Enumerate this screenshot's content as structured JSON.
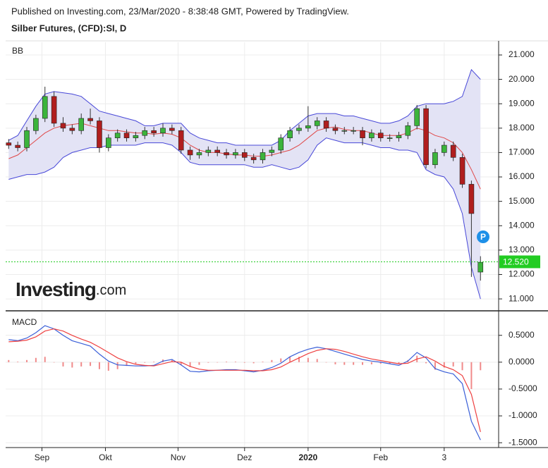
{
  "header": {
    "published": "Published on Investing.com, 23/Mar/2020 - 8:38:48 GMT, Powered by TradingView.",
    "instrument": "Silber Futures, (CFD):SI, D"
  },
  "logo": {
    "brand": "Investing",
    "suffix": ".com"
  },
  "marker": "P",
  "chart_data": [
    {
      "type": "candlestick",
      "title": "BB",
      "up_color": "#3cb43c",
      "down_color": "#b01e1e",
      "x": [
        1,
        4,
        7,
        10,
        13,
        16,
        19,
        22,
        25,
        28,
        31,
        34,
        37,
        40,
        43,
        46,
        49,
        52,
        55,
        58,
        61,
        64,
        67,
        70,
        73,
        76,
        79,
        82,
        85,
        88,
        91,
        94,
        97,
        100,
        103,
        106,
        109,
        112,
        115,
        118,
        121,
        124,
        127,
        130,
        133,
        136,
        139,
        142,
        145,
        148,
        151,
        154,
        157
      ],
      "open": [
        17.4,
        17.3,
        17.2,
        17.9,
        18.4,
        19.3,
        18.2,
        18.0,
        17.9,
        18.4,
        18.3,
        17.2,
        17.6,
        17.8,
        17.6,
        17.7,
        17.9,
        17.8,
        18.0,
        17.9,
        17.1,
        16.9,
        17.0,
        17.1,
        17.0,
        16.9,
        17.0,
        16.8,
        16.7,
        17.0,
        17.1,
        17.6,
        17.9,
        18.0,
        18.1,
        18.3,
        18.0,
        17.9,
        17.9,
        17.9,
        17.6,
        17.8,
        17.6,
        17.6,
        17.7,
        18.1,
        18.8,
        16.5,
        17.0,
        17.3,
        16.8,
        15.7,
        12.1
      ],
      "high": [
        17.55,
        17.45,
        18.05,
        18.55,
        19.7,
        19.5,
        18.45,
        18.15,
        18.6,
        18.8,
        18.45,
        17.75,
        17.95,
        17.95,
        17.85,
        18.05,
        18.05,
        18.2,
        18.15,
        18.05,
        17.25,
        17.15,
        17.25,
        17.25,
        17.15,
        17.15,
        17.15,
        16.95,
        17.15,
        17.25,
        17.75,
        18.05,
        18.15,
        18.9,
        18.45,
        18.45,
        18.15,
        18.05,
        18.05,
        18.05,
        17.95,
        17.95,
        17.75,
        17.85,
        18.25,
        18.95,
        18.95,
        17.15,
        17.45,
        17.45,
        16.95,
        15.85,
        12.75
      ],
      "low": [
        17.15,
        17.05,
        17.05,
        17.75,
        18.25,
        18.05,
        17.85,
        17.75,
        17.75,
        18.15,
        17.0,
        17.05,
        17.45,
        17.45,
        17.45,
        17.55,
        17.65,
        17.65,
        17.75,
        16.95,
        16.7,
        16.75,
        16.85,
        16.85,
        16.75,
        16.75,
        16.65,
        16.55,
        16.55,
        16.85,
        16.95,
        17.45,
        17.75,
        17.85,
        17.95,
        17.85,
        17.75,
        17.75,
        17.75,
        17.3,
        17.45,
        17.45,
        17.45,
        17.45,
        17.55,
        17.95,
        16.35,
        16.35,
        16.85,
        16.65,
        15.55,
        11.9,
        11.75
      ],
      "close": [
        17.3,
        17.2,
        17.9,
        18.4,
        19.3,
        18.2,
        18.0,
        17.9,
        18.4,
        18.3,
        17.2,
        17.6,
        17.8,
        17.6,
        17.7,
        17.9,
        17.8,
        18.0,
        17.9,
        17.1,
        16.9,
        17.0,
        17.1,
        17.0,
        16.9,
        17.0,
        16.8,
        16.7,
        17.0,
        17.1,
        17.6,
        17.9,
        18.0,
        18.1,
        18.3,
        18.0,
        17.9,
        17.9,
        17.9,
        17.6,
        17.8,
        17.6,
        17.6,
        17.7,
        18.1,
        18.8,
        16.5,
        17.0,
        17.3,
        16.8,
        15.7,
        14.5,
        12.5
      ],
      "band_color": "#e3e3f5",
      "series": [
        {
          "color": "#4848d8",
          "values": [
            17.5,
            17.7,
            18.3,
            18.9,
            19.4,
            19.5,
            19.45,
            19.4,
            19.3,
            19.0,
            18.7,
            18.6,
            18.5,
            18.4,
            18.3,
            18.1,
            18.1,
            18.2,
            18.2,
            18.2,
            17.8,
            17.6,
            17.5,
            17.4,
            17.4,
            17.3,
            17.3,
            17.3,
            17.3,
            17.3,
            17.5,
            17.9,
            18.2,
            18.5,
            18.6,
            18.6,
            18.6,
            18.5,
            18.5,
            18.4,
            18.3,
            18.2,
            18.2,
            18.3,
            18.5,
            18.9,
            19.0,
            19.0,
            19.0,
            19.1,
            19.3,
            20.4,
            20.0
          ]
        },
        {
          "color": "#e04848",
          "values": [
            16.75,
            16.9,
            17.2,
            17.5,
            17.8,
            18.0,
            18.1,
            18.15,
            18.2,
            18.1,
            18.0,
            17.9,
            17.9,
            17.85,
            17.8,
            17.8,
            17.75,
            17.8,
            17.75,
            17.6,
            17.3,
            17.1,
            17.0,
            17.0,
            16.95,
            16.9,
            16.9,
            16.85,
            16.85,
            16.9,
            17.0,
            17.1,
            17.3,
            17.6,
            17.9,
            18.0,
            18.05,
            17.95,
            17.9,
            17.9,
            17.8,
            17.7,
            17.7,
            17.7,
            17.8,
            18.0,
            17.9,
            17.7,
            17.6,
            17.4,
            17.0,
            16.3,
            15.5
          ]
        },
        {
          "color": "#4848d8",
          "values": [
            15.9,
            16.0,
            16.1,
            16.1,
            16.2,
            16.4,
            16.8,
            17.0,
            17.1,
            17.2,
            17.2,
            17.3,
            17.3,
            17.3,
            17.3,
            17.4,
            17.4,
            17.4,
            17.3,
            17.0,
            16.6,
            16.5,
            16.5,
            16.5,
            16.5,
            16.5,
            16.5,
            16.4,
            16.4,
            16.5,
            16.4,
            16.3,
            16.4,
            16.7,
            17.3,
            17.6,
            17.5,
            17.4,
            17.4,
            17.4,
            17.3,
            17.2,
            17.2,
            17.1,
            17.1,
            17.0,
            16.3,
            16.1,
            16.0,
            15.5,
            14.5,
            12.3,
            11.0
          ]
        }
      ],
      "last_price": {
        "value": 12.52,
        "label": "12.520",
        "color": "#22cc22"
      },
      "xlim": [
        0,
        163
      ],
      "xticks": [
        {
          "value": 12,
          "label": "Sep"
        },
        {
          "value": 33,
          "label": "Okt"
        },
        {
          "value": 57,
          "label": "Nov"
        },
        {
          "value": 79,
          "label": "Dez"
        },
        {
          "value": 100,
          "label": "2020"
        },
        {
          "value": 124,
          "label": "Feb"
        },
        {
          "value": 145,
          "label": "3"
        }
      ],
      "ylim": [
        10.54,
        21.52
      ],
      "yticks": [
        {
          "value": 11,
          "label": "11.000"
        },
        {
          "value": 12,
          "label": "12.000"
        },
        {
          "value": 13,
          "label": "13.000"
        },
        {
          "value": 14,
          "label": "14.000"
        },
        {
          "value": 15,
          "label": "15.000"
        },
        {
          "value": 16,
          "label": "16.000"
        },
        {
          "value": 17,
          "label": "17.000"
        },
        {
          "value": 18,
          "label": "18.000"
        },
        {
          "value": 19,
          "label": "19.000"
        },
        {
          "value": 20,
          "label": "20.000"
        },
        {
          "value": 21,
          "label": "21.000"
        }
      ],
      "grid": true
    },
    {
      "type": "macd",
      "title": "MACD",
      "x": [
        1,
        4,
        7,
        10,
        13,
        16,
        19,
        22,
        25,
        28,
        31,
        34,
        37,
        40,
        43,
        46,
        49,
        52,
        55,
        58,
        61,
        64,
        67,
        70,
        73,
        76,
        79,
        82,
        85,
        88,
        91,
        94,
        97,
        100,
        103,
        106,
        109,
        112,
        115,
        118,
        121,
        124,
        127,
        130,
        133,
        136,
        139,
        142,
        145,
        148,
        151,
        154,
        157
      ],
      "series": [
        {
          "color": "#3a5fd8",
          "values": [
            0.42,
            0.4,
            0.45,
            0.55,
            0.68,
            0.62,
            0.5,
            0.4,
            0.35,
            0.3,
            0.15,
            0.02,
            -0.05,
            -0.06,
            -0.07,
            -0.07,
            -0.06,
            0.02,
            0.05,
            -0.05,
            -0.17,
            -0.18,
            -0.16,
            -0.15,
            -0.14,
            -0.14,
            -0.16,
            -0.18,
            -0.15,
            -0.1,
            -0.02,
            0.1,
            0.18,
            0.24,
            0.28,
            0.25,
            0.2,
            0.15,
            0.1,
            0.05,
            0.02,
            0.0,
            -0.03,
            -0.06,
            0.02,
            0.18,
            0.08,
            -0.12,
            -0.18,
            -0.22,
            -0.4,
            -1.1,
            -1.45
          ]
        },
        {
          "color": "#ee4040",
          "values": [
            0.38,
            0.39,
            0.41,
            0.47,
            0.58,
            0.62,
            0.58,
            0.5,
            0.43,
            0.37,
            0.28,
            0.18,
            0.08,
            0.01,
            -0.04,
            -0.06,
            -0.07,
            -0.03,
            0.01,
            0.0,
            -0.08,
            -0.13,
            -0.15,
            -0.15,
            -0.15,
            -0.15,
            -0.15,
            -0.16,
            -0.16,
            -0.14,
            -0.09,
            0.0,
            0.08,
            0.16,
            0.22,
            0.25,
            0.24,
            0.2,
            0.15,
            0.1,
            0.06,
            0.03,
            0.0,
            -0.03,
            -0.02,
            0.06,
            0.1,
            0.02,
            -0.08,
            -0.14,
            -0.25,
            -0.6,
            -1.3
          ]
        }
      ],
      "histogram": {
        "color": "#f08a8a",
        "values": [
          0.04,
          0.01,
          0.04,
          0.08,
          0.1,
          0.0,
          -0.08,
          -0.1,
          -0.08,
          -0.07,
          -0.13,
          -0.16,
          -0.13,
          -0.07,
          -0.03,
          -0.01,
          0.01,
          0.05,
          0.04,
          -0.05,
          -0.09,
          -0.05,
          -0.01,
          0.0,
          0.01,
          0.01,
          -0.01,
          -0.02,
          0.01,
          0.04,
          0.07,
          0.1,
          0.1,
          0.08,
          0.06,
          0.0,
          -0.04,
          -0.05,
          -0.05,
          -0.05,
          -0.04,
          -0.03,
          -0.03,
          -0.03,
          0.04,
          0.12,
          -0.02,
          -0.14,
          -0.1,
          -0.08,
          -0.15,
          -0.5,
          -0.15
        ]
      },
      "xlim": [
        0,
        163
      ],
      "xticks": [
        {
          "value": 12,
          "label": "Sep"
        },
        {
          "value": 33,
          "label": "Okt"
        },
        {
          "value": 57,
          "label": "Nov"
        },
        {
          "value": 79,
          "label": "Dez"
        },
        {
          "value": 100,
          "label": "2020"
        },
        {
          "value": 124,
          "label": "Feb"
        },
        {
          "value": 145,
          "label": "3"
        }
      ],
      "ylim": [
        -1.59,
        0.93
      ],
      "yticks": [
        {
          "value": 0.5,
          "label": "0.5000"
        },
        {
          "value": 0,
          "label": "0.0000"
        },
        {
          "value": -0.5,
          "label": "-0.5000"
        },
        {
          "value": -1,
          "label": "-1.0000"
        },
        {
          "value": -1.5,
          "label": "-1.5000"
        }
      ],
      "grid": true
    }
  ]
}
